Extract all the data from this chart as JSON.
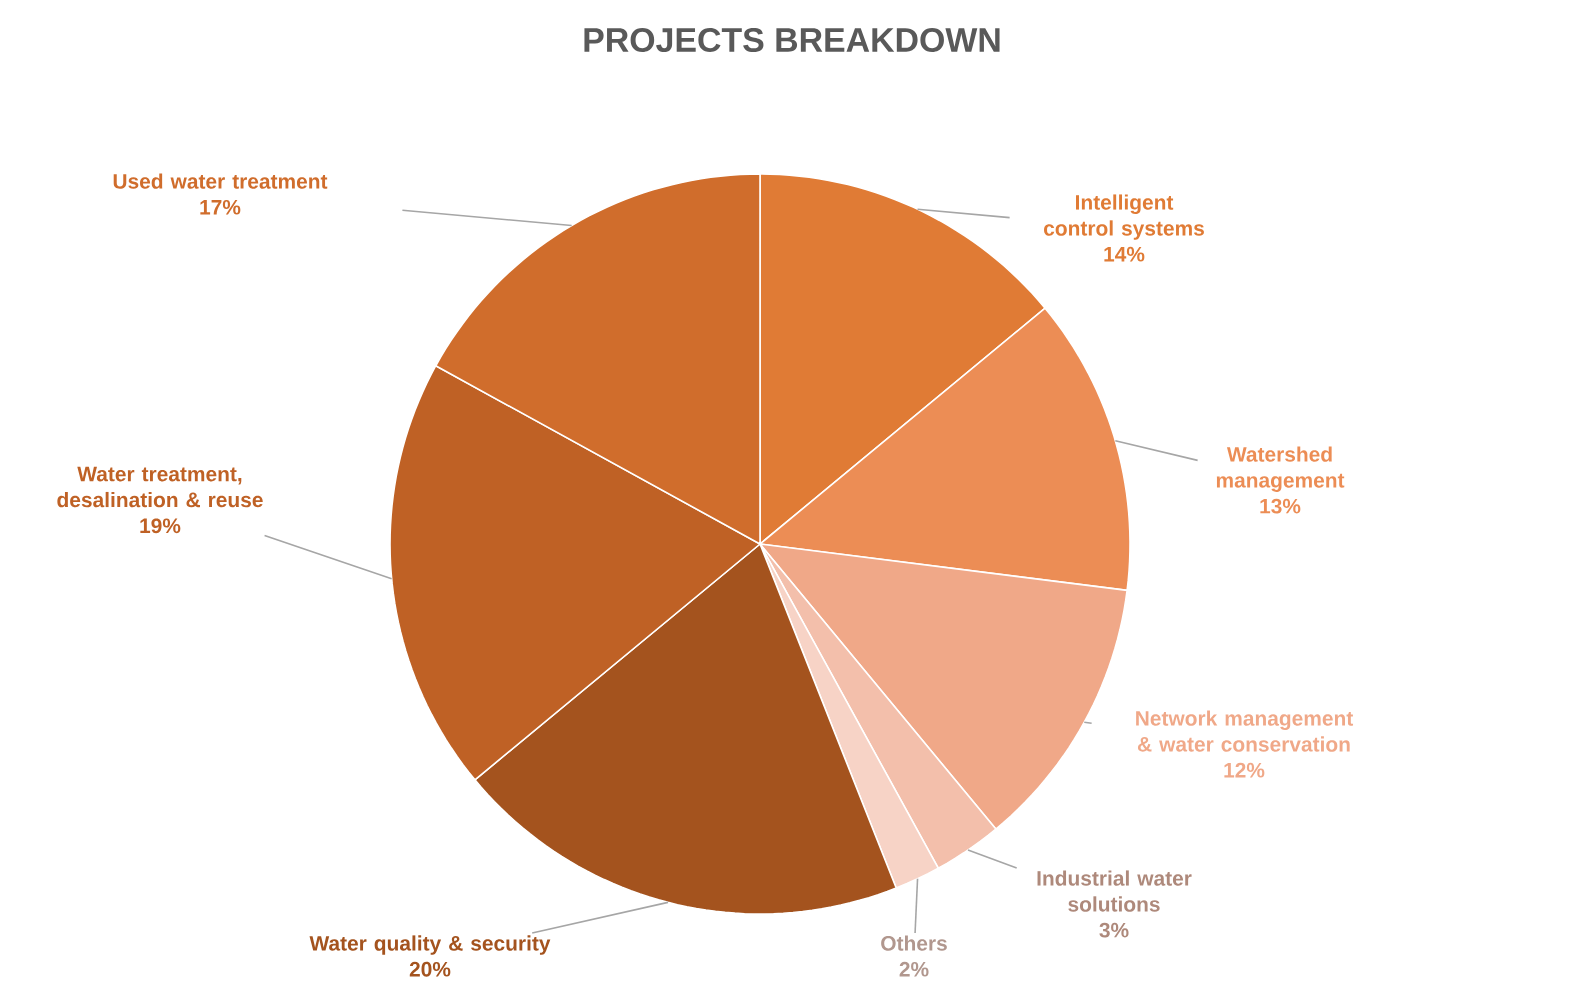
{
  "chart_data": {
    "type": "pie",
    "title": "PROJECTS BREAKDOWN",
    "categories": [
      "Intelligent control systems",
      "Watershed management",
      "Network management & water conservation",
      "Industrial water solutions",
      "Others",
      "Water quality & security",
      "Water treatment, desalination & reuse",
      "Used water treatment"
    ],
    "values": [
      14,
      13,
      12,
      3,
      2,
      20,
      19,
      17
    ],
    "value_labels": [
      "14%",
      "13%",
      "12%",
      "3%",
      "2%",
      "20%",
      "19%",
      "17%"
    ],
    "colors": [
      "#e07b35",
      "#ec8d55",
      "#f0a888",
      "#f3bfab",
      "#f7d3c6",
      "#a4531e",
      "#bf6125",
      "#d06d2c"
    ]
  }
}
